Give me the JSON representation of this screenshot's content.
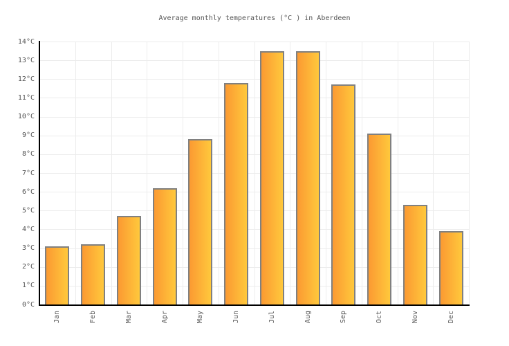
{
  "chart_data": {
    "type": "bar",
    "title": "Average monthly temperatures (°C ) in Aberdeen",
    "categories": [
      "Jan",
      "Feb",
      "Mar",
      "Apr",
      "May",
      "Jun",
      "Jul",
      "Aug",
      "Sep",
      "Oct",
      "Nov",
      "Dec"
    ],
    "values": [
      3.1,
      3.2,
      4.7,
      6.2,
      8.8,
      11.8,
      13.5,
      13.5,
      11.7,
      9.1,
      5.3,
      3.9
    ],
    "xlabel": "",
    "ylabel": "",
    "ylim": [
      0,
      14
    ],
    "y_tick_step": 1,
    "y_tick_suffix": "°C",
    "grid": true,
    "legend_position": "none"
  },
  "colors": {
    "background": "#ffffff",
    "bar_gradient_left": "#fb9a32",
    "bar_gradient_right": "#ffc83c",
    "bar_border": "#808080",
    "gridline": "#ececec",
    "axis": "#000000",
    "tick_text": "#545454",
    "title_text": "#545454"
  }
}
